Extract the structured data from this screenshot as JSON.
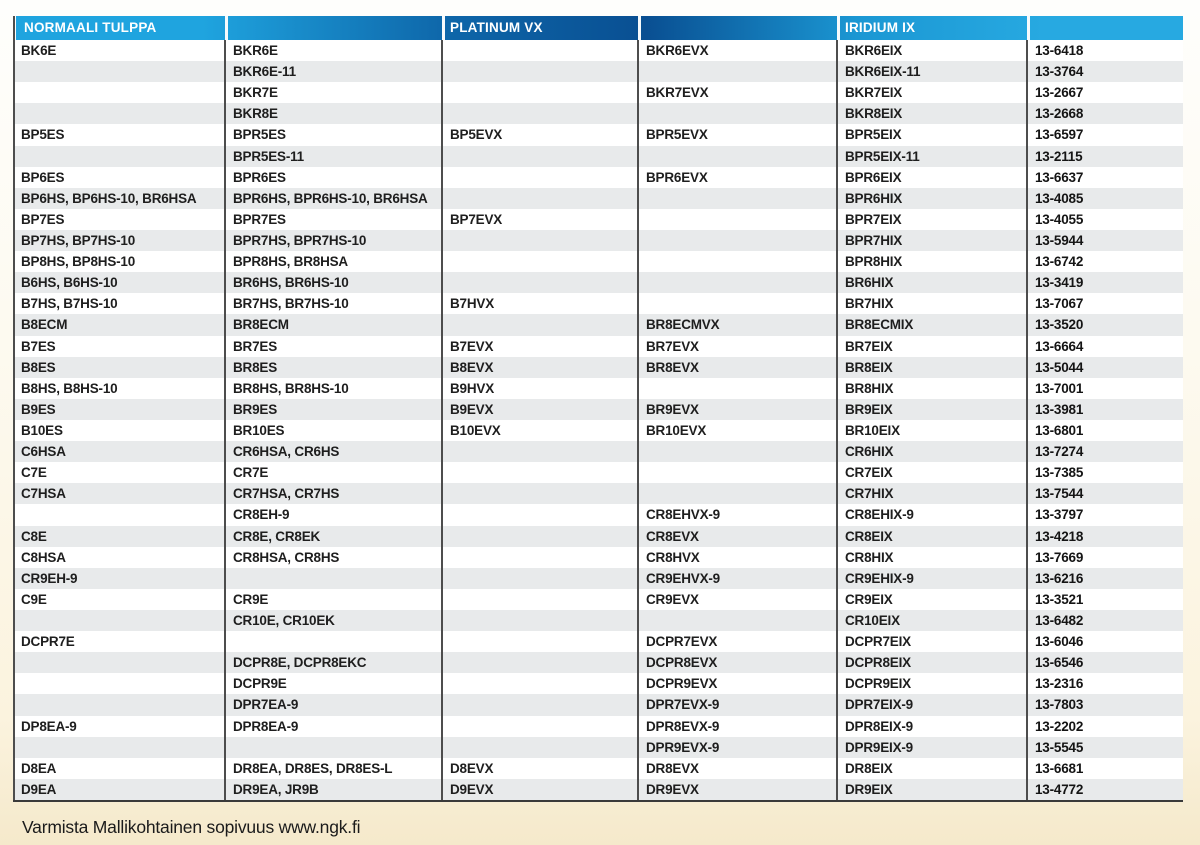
{
  "table": {
    "headers": {
      "col1": "NORMAALI TULPPA",
      "col3": "PLATINUM VX",
      "col5": "IRIDIUM IX"
    },
    "rows": [
      [
        "BK6E",
        "BKR6E",
        "",
        "BKR6EVX",
        "BKR6EIX",
        "13-6418"
      ],
      [
        "",
        "BKR6E-11",
        "",
        "",
        "BKR6EIX-11",
        "13-3764"
      ],
      [
        "",
        "BKR7E",
        "",
        "BKR7EVX",
        "BKR7EIX",
        "13-2667"
      ],
      [
        "",
        "BKR8E",
        "",
        "",
        "BKR8EIX",
        "13-2668"
      ],
      [
        "BP5ES",
        "BPR5ES",
        "BP5EVX",
        "BPR5EVX",
        "BPR5EIX",
        "13-6597"
      ],
      [
        "",
        "BPR5ES-11",
        "",
        "",
        "BPR5EIX-11",
        "13-2115"
      ],
      [
        "BP6ES",
        "BPR6ES",
        "",
        "BPR6EVX",
        "BPR6EIX",
        "13-6637"
      ],
      [
        "BP6HS, BP6HS-10, BR6HSA",
        "BPR6HS, BPR6HS-10, BR6HSA",
        "",
        "",
        "BPR6HIX",
        "13-4085"
      ],
      [
        "BP7ES",
        "BPR7ES",
        "BP7EVX",
        "",
        "BPR7EIX",
        "13-4055"
      ],
      [
        "BP7HS, BP7HS-10",
        "BPR7HS, BPR7HS-10",
        "",
        "",
        "BPR7HIX",
        "13-5944"
      ],
      [
        "BP8HS, BP8HS-10",
        "BPR8HS, BR8HSA",
        "",
        "",
        "BPR8HIX",
        "13-6742"
      ],
      [
        "B6HS, B6HS-10",
        "BR6HS, BR6HS-10",
        "",
        "",
        "BR6HIX",
        "13-3419"
      ],
      [
        "B7HS, B7HS-10",
        "BR7HS, BR7HS-10",
        "B7HVX",
        "",
        "BR7HIX",
        "13-7067"
      ],
      [
        "B8ECM",
        "BR8ECM",
        "",
        "BR8ECMVX",
        "BR8ECMIX",
        "13-3520"
      ],
      [
        "B7ES",
        "BR7ES",
        "B7EVX",
        "BR7EVX",
        "BR7EIX",
        "13-6664"
      ],
      [
        "B8ES",
        "BR8ES",
        "B8EVX",
        "BR8EVX",
        "BR8EIX",
        "13-5044"
      ],
      [
        "B8HS, B8HS-10",
        "BR8HS, BR8HS-10",
        "B9HVX",
        "",
        "BR8HIX",
        "13-7001"
      ],
      [
        "B9ES",
        "BR9ES",
        "B9EVX",
        "BR9EVX",
        "BR9EIX",
        "13-3981"
      ],
      [
        "B10ES",
        "BR10ES",
        "B10EVX",
        "BR10EVX",
        "BR10EIX",
        "13-6801"
      ],
      [
        "C6HSA",
        "CR6HSA, CR6HS",
        "",
        "",
        "CR6HIX",
        "13-7274"
      ],
      [
        "C7E",
        "CR7E",
        "",
        "",
        "CR7EIX",
        "13-7385"
      ],
      [
        "C7HSA",
        "CR7HSA, CR7HS",
        "",
        "",
        "CR7HIX",
        "13-7544"
      ],
      [
        "",
        "CR8EH-9",
        "",
        "CR8EHVX-9",
        "CR8EHIX-9",
        "13-3797"
      ],
      [
        "C8E",
        "CR8E, CR8EK",
        "",
        "CR8EVX",
        "CR8EIX",
        "13-4218"
      ],
      [
        "C8HSA",
        "CR8HSA, CR8HS",
        "",
        "CR8HVX",
        "CR8HIX",
        "13-7669"
      ],
      [
        "CR9EH-9",
        "",
        "",
        "CR9EHVX-9",
        "CR9EHIX-9",
        "13-6216"
      ],
      [
        "C9E",
        "CR9E",
        "",
        "CR9EVX",
        "CR9EIX",
        "13-3521"
      ],
      [
        "",
        "CR10E, CR10EK",
        "",
        "",
        "CR10EIX",
        "13-6482"
      ],
      [
        "DCPR7E",
        "",
        "",
        "DCPR7EVX",
        "DCPR7EIX",
        "13-6046"
      ],
      [
        "",
        "DCPR8E, DCPR8EKC",
        "",
        "DCPR8EVX",
        "DCPR8EIX",
        "13-6546"
      ],
      [
        "",
        "DCPR9E",
        "",
        "DCPR9EVX",
        "DCPR9EIX",
        "13-2316"
      ],
      [
        "",
        "DPR7EA-9",
        "",
        "DPR7EVX-9",
        "DPR7EIX-9",
        "13-7803"
      ],
      [
        "DP8EA-9",
        "DPR8EA-9",
        "",
        "DPR8EVX-9",
        "DPR8EIX-9",
        "13-2202"
      ],
      [
        "",
        "",
        "",
        "DPR9EVX-9",
        "DPR9EIX-9",
        "13-5545"
      ],
      [
        "D8EA",
        "DR8EA, DR8ES, DR8ES-L",
        "D8EVX",
        "DR8EVX",
        "DR8EIX",
        "13-6681"
      ],
      [
        "D9EA",
        "DR9EA, JR9B",
        "D9EVX",
        "DR9EVX",
        "DR9EIX",
        "13-4772"
      ]
    ]
  },
  "footer": {
    "note": "Varmista Mallikohtainen sopivuus www.ngk.fi"
  },
  "colors": {
    "header_blue_light": "#1fa4df",
    "header_blue_dark": "#094f92",
    "stripe_gray": "#e8eaeb",
    "page_cream": "#fbf3de",
    "rule_dark": "#4d4d4d"
  }
}
